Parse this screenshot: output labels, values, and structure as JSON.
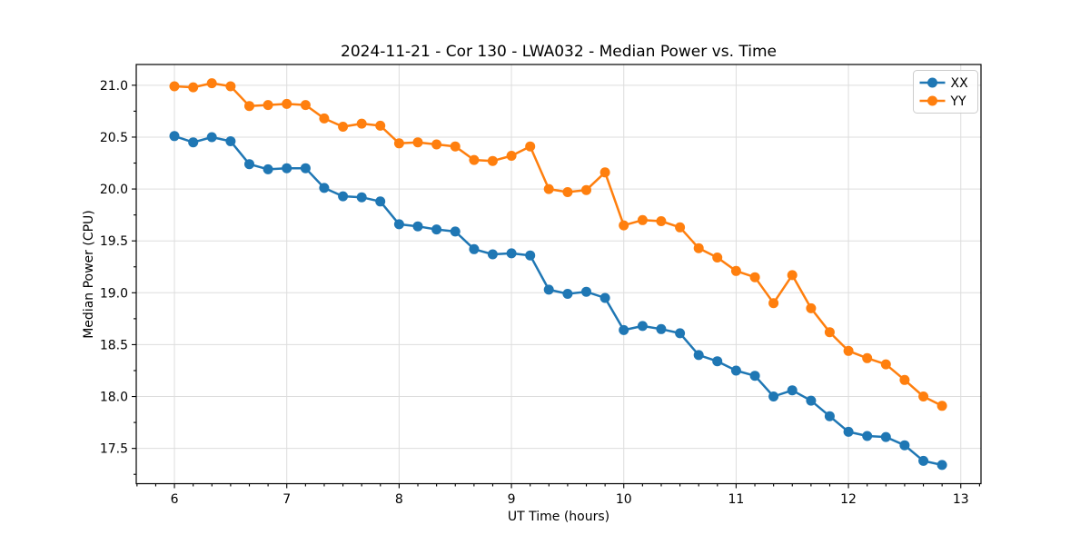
{
  "chart_data": {
    "type": "line",
    "title": "2024-11-21 - Cor 130 - LWA032 - Median Power vs. Time",
    "xlabel": "UT Time (hours)",
    "ylabel": "Median Power (CPU)",
    "xlim": [
      5.66,
      13.18
    ],
    "ylim": [
      17.16,
      21.2
    ],
    "x_ticks": [
      6,
      7,
      8,
      9,
      10,
      11,
      12,
      13
    ],
    "y_ticks": [
      17.5,
      18.0,
      18.5,
      19.0,
      19.5,
      20.0,
      20.5,
      21.0
    ],
    "x_minor_step": 0.16667,
    "y_minor_step": 0.25,
    "grid": true,
    "legend_position": "upper right",
    "colors": {
      "background": "#ffffff",
      "axes": "#000000",
      "grid": "#dddddd",
      "legend_border": "#cccccc"
    },
    "x": [
      6.0,
      6.167,
      6.333,
      6.5,
      6.667,
      6.833,
      7.0,
      7.167,
      7.333,
      7.5,
      7.667,
      7.833,
      8.0,
      8.167,
      8.333,
      8.5,
      8.667,
      8.833,
      9.0,
      9.167,
      9.333,
      9.5,
      9.667,
      9.833,
      10.0,
      10.167,
      10.333,
      10.5,
      10.667,
      10.833,
      11.0,
      11.167,
      11.333,
      11.5,
      11.667,
      11.833,
      12.0,
      12.167,
      12.333,
      12.5,
      12.667,
      12.833
    ],
    "series": [
      {
        "name": "XX",
        "color": "#1f77b4",
        "values": [
          20.51,
          20.45,
          20.5,
          20.46,
          20.24,
          20.19,
          20.2,
          20.2,
          20.01,
          19.93,
          19.92,
          19.88,
          19.66,
          19.64,
          19.61,
          19.59,
          19.42,
          19.37,
          19.38,
          19.36,
          19.03,
          18.99,
          19.01,
          18.95,
          18.64,
          18.68,
          18.65,
          18.61,
          18.4,
          18.34,
          18.25,
          18.2,
          18.0,
          18.06,
          17.96,
          17.81,
          17.66,
          17.62,
          17.61,
          17.53,
          17.38,
          17.34
        ]
      },
      {
        "name": "YY",
        "color": "#ff7f0e",
        "values": [
          20.99,
          20.98,
          21.02,
          20.99,
          20.8,
          20.81,
          20.82,
          20.81,
          20.68,
          20.6,
          20.63,
          20.61,
          20.44,
          20.45,
          20.43,
          20.41,
          20.28,
          20.27,
          20.32,
          20.41,
          20.0,
          19.97,
          19.99,
          20.16,
          19.65,
          19.7,
          19.69,
          19.63,
          19.43,
          19.34,
          19.21,
          19.15,
          18.9,
          19.17,
          18.85,
          18.62,
          18.44,
          18.37,
          18.31,
          18.16,
          18.0,
          17.91
        ]
      }
    ]
  }
}
